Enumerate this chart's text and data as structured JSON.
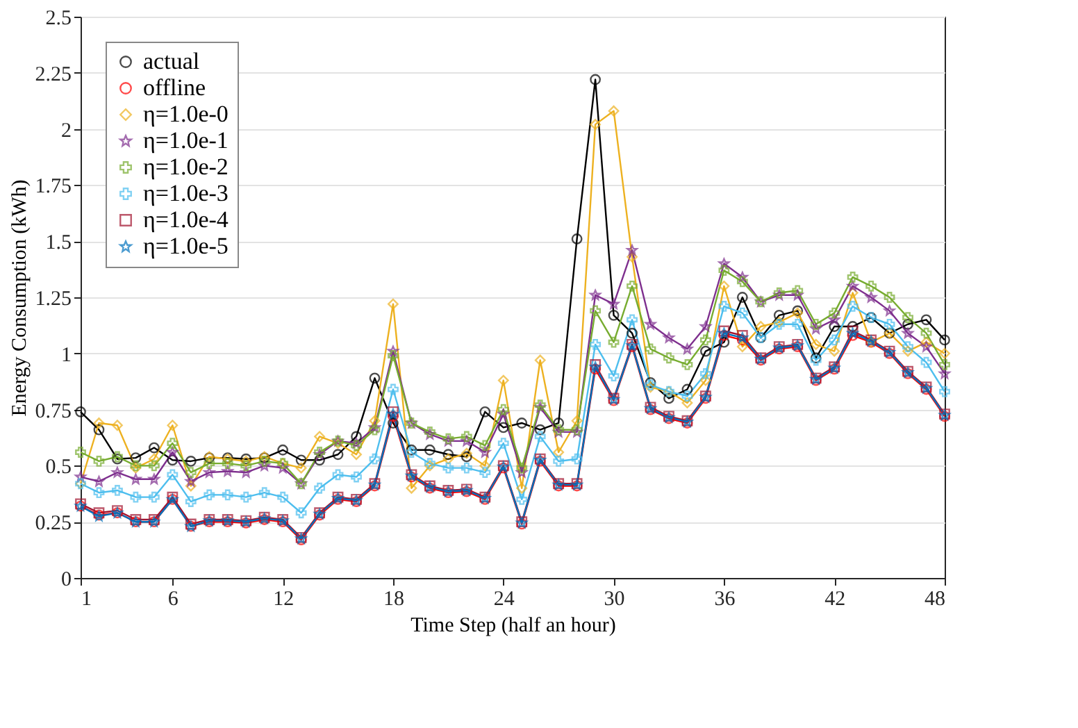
{
  "chart_data": {
    "type": "line",
    "xlabel": "Time Step (half an hour)",
    "ylabel": "Energy Consumption (kWh)",
    "x": [
      1,
      2,
      3,
      4,
      5,
      6,
      7,
      8,
      9,
      10,
      11,
      12,
      13,
      14,
      15,
      16,
      17,
      18,
      19,
      20,
      21,
      22,
      23,
      24,
      25,
      26,
      27,
      28,
      29,
      30,
      31,
      32,
      33,
      34,
      35,
      36,
      37,
      38,
      39,
      40,
      41,
      42,
      43,
      44,
      45,
      46,
      47,
      48
    ],
    "xlim": [
      1,
      48
    ],
    "xticks": [
      1,
      6,
      12,
      18,
      24,
      30,
      36,
      42,
      48
    ],
    "ylim": [
      0,
      2.5
    ],
    "yticks": [
      0,
      0.25,
      0.5,
      0.75,
      1,
      1.25,
      1.5,
      1.75,
      2,
      2.25,
      2.5
    ],
    "grid": "y",
    "legend": "top left",
    "line_style": "solid",
    "series": [
      {
        "name": "actual",
        "color": "#000000",
        "marker": "circle",
        "values": [
          0.74,
          0.66,
          0.53,
          0.535,
          0.58,
          0.525,
          0.52,
          0.535,
          0.535,
          0.53,
          0.535,
          0.57,
          0.525,
          0.525,
          0.55,
          0.63,
          0.89,
          0.69,
          0.57,
          0.57,
          0.55,
          0.54,
          0.74,
          0.67,
          0.69,
          0.66,
          0.69,
          1.51,
          2.22,
          1.17,
          1.09,
          0.87,
          0.8,
          0.84,
          1.01,
          1.05,
          1.25,
          1.07,
          1.17,
          1.19,
          0.98,
          1.12,
          1.12,
          1.16,
          1.09,
          1.13,
          1.15,
          1.06
        ]
      },
      {
        "name": "offline",
        "color": "#ff0000",
        "marker": "circle",
        "values": [
          0.32,
          0.28,
          0.29,
          0.25,
          0.25,
          0.35,
          0.23,
          0.25,
          0.25,
          0.245,
          0.26,
          0.25,
          0.17,
          0.28,
          0.35,
          0.34,
          0.41,
          0.72,
          0.45,
          0.4,
          0.38,
          0.385,
          0.35,
          0.49,
          0.24,
          0.52,
          0.41,
          0.41,
          0.93,
          0.79,
          1.03,
          0.75,
          0.71,
          0.69,
          0.8,
          1.08,
          1.06,
          0.97,
          1.02,
          1.03,
          0.88,
          0.93,
          1.08,
          1.05,
          1.0,
          0.91,
          0.84,
          0.72
        ]
      },
      {
        "name": "η=1.0e-0",
        "color": "#edb120",
        "marker": "diamond",
        "values": [
          0.42,
          0.69,
          0.68,
          0.49,
          0.53,
          0.68,
          0.41,
          0.54,
          0.53,
          0.52,
          0.54,
          0.51,
          0.49,
          0.63,
          0.6,
          0.55,
          0.7,
          1.22,
          0.4,
          0.5,
          0.53,
          0.555,
          0.5,
          0.88,
          0.4,
          0.97,
          0.56,
          0.7,
          2.02,
          2.08,
          1.43,
          0.85,
          0.83,
          0.78,
          0.88,
          1.3,
          1.03,
          1.12,
          1.14,
          1.18,
          1.04,
          1.01,
          1.27,
          1.05,
          1.09,
          1.01,
          1.05,
          1.0
        ]
      },
      {
        "name": "η=1.0e-1",
        "color": "#7e2f8e",
        "marker": "star",
        "values": [
          0.45,
          0.43,
          0.47,
          0.44,
          0.44,
          0.56,
          0.43,
          0.47,
          0.475,
          0.47,
          0.5,
          0.49,
          0.42,
          0.55,
          0.61,
          0.6,
          0.67,
          1.01,
          0.69,
          0.64,
          0.61,
          0.61,
          0.56,
          0.73,
          0.47,
          0.76,
          0.65,
          0.65,
          1.26,
          1.22,
          1.46,
          1.13,
          1.07,
          1.02,
          1.12,
          1.4,
          1.34,
          1.23,
          1.26,
          1.26,
          1.11,
          1.15,
          1.3,
          1.25,
          1.19,
          1.09,
          1.03,
          0.91
        ]
      },
      {
        "name": "η=1.0e-2",
        "color": "#77ac30",
        "marker": "cross",
        "values": [
          0.56,
          0.52,
          0.54,
          0.5,
          0.5,
          0.6,
          0.47,
          0.51,
          0.51,
          0.5,
          0.52,
          0.51,
          0.42,
          0.56,
          0.61,
          0.59,
          0.66,
          0.99,
          0.69,
          0.65,
          0.62,
          0.63,
          0.59,
          0.75,
          0.49,
          0.77,
          0.66,
          0.66,
          1.19,
          1.05,
          1.3,
          1.02,
          0.98,
          0.95,
          1.06,
          1.37,
          1.32,
          1.23,
          1.27,
          1.28,
          1.13,
          1.18,
          1.34,
          1.3,
          1.25,
          1.16,
          1.09,
          0.95
        ]
      },
      {
        "name": "η=1.0e-3",
        "color": "#4dbeee",
        "marker": "cross",
        "values": [
          0.42,
          0.38,
          0.39,
          0.36,
          0.36,
          0.46,
          0.34,
          0.37,
          0.37,
          0.36,
          0.38,
          0.36,
          0.29,
          0.4,
          0.46,
          0.45,
          0.53,
          0.84,
          0.56,
          0.51,
          0.49,
          0.49,
          0.47,
          0.6,
          0.35,
          0.63,
          0.52,
          0.53,
          1.04,
          0.9,
          1.15,
          0.86,
          0.83,
          0.81,
          0.91,
          1.21,
          1.18,
          1.07,
          1.13,
          1.13,
          0.97,
          1.06,
          1.21,
          1.16,
          1.13,
          1.03,
          0.96,
          0.83
        ]
      },
      {
        "name": "η=1.0e-4",
        "color": "#a2142f",
        "marker": "square",
        "values": [
          0.33,
          0.29,
          0.3,
          0.26,
          0.26,
          0.36,
          0.24,
          0.26,
          0.26,
          0.255,
          0.27,
          0.26,
          0.18,
          0.29,
          0.36,
          0.35,
          0.42,
          0.74,
          0.46,
          0.41,
          0.39,
          0.395,
          0.36,
          0.5,
          0.25,
          0.53,
          0.42,
          0.42,
          0.95,
          0.8,
          1.04,
          0.76,
          0.72,
          0.7,
          0.81,
          1.1,
          1.08,
          0.98,
          1.03,
          1.04,
          0.89,
          0.94,
          1.1,
          1.06,
          1.01,
          0.92,
          0.85,
          0.73
        ]
      },
      {
        "name": "η=1.0e-5",
        "color": "#0072bd",
        "marker": "star",
        "values": [
          0.32,
          0.275,
          0.29,
          0.25,
          0.25,
          0.35,
          0.23,
          0.255,
          0.255,
          0.25,
          0.265,
          0.255,
          0.175,
          0.285,
          0.355,
          0.345,
          0.415,
          0.73,
          0.455,
          0.405,
          0.385,
          0.39,
          0.355,
          0.495,
          0.245,
          0.525,
          0.415,
          0.415,
          0.94,
          0.795,
          1.035,
          0.755,
          0.715,
          0.695,
          0.805,
          1.09,
          1.07,
          0.975,
          1.025,
          1.035,
          0.885,
          0.935,
          1.09,
          1.055,
          1.005,
          0.915,
          0.845,
          0.725
        ]
      }
    ]
  }
}
